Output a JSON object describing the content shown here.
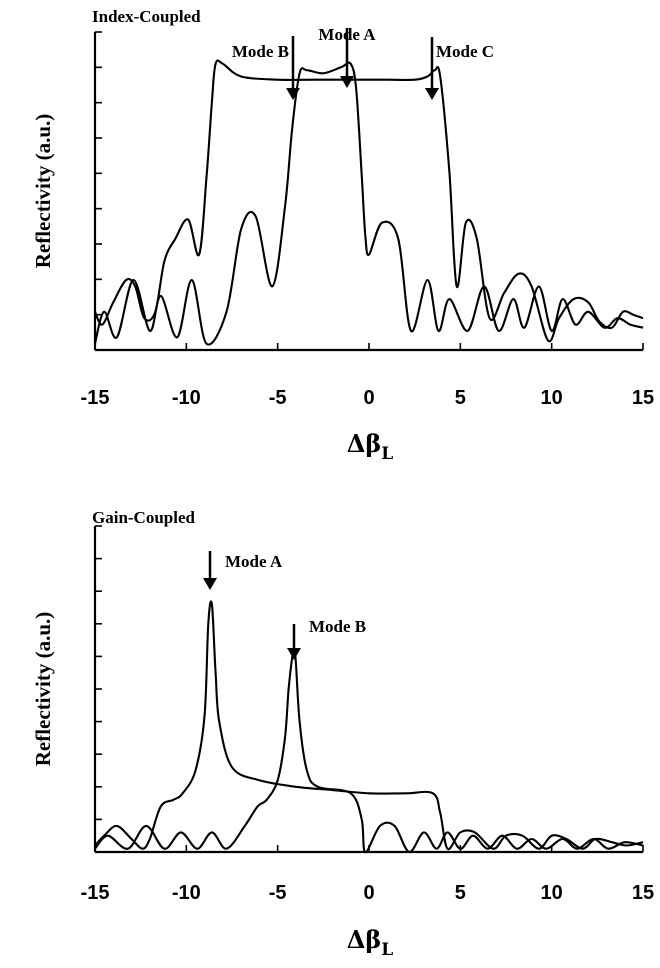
{
  "chart_data": [
    {
      "type": "line",
      "title": "Index-Coupled",
      "xlabel": "Δβ",
      "xlabel_sub": "L",
      "ylabel": "Reflectivity (a.u.)",
      "xlim": [
        -15,
        15
      ],
      "xticks": [
        "-15",
        "-10",
        "-5",
        "0",
        "5",
        "10",
        "15"
      ],
      "ylim": [
        0,
        1
      ],
      "grid": false,
      "annotations": [
        {
          "text": "Mode B",
          "x": -3.6
        },
        {
          "text": "Mode A",
          "x": -0.8
        },
        {
          "text": "Mode C",
          "x": 3.6
        }
      ],
      "series": [
        {
          "x": [
            -15,
            -14.6,
            -14,
            -13.3,
            -12.8,
            -12.3,
            -11.7,
            -11.2,
            -10.6,
            -9.9,
            -9.3,
            -8.9,
            -8.6,
            -8.4,
            -8,
            -7,
            -5,
            -3,
            -1,
            0,
            1,
            2.5,
            3.2,
            3.6,
            3.9,
            4.4,
            4.8,
            5.3,
            5.9,
            6.6,
            7.4,
            8.2,
            8.9,
            9.8,
            10.4,
            11.2,
            12,
            12.6,
            13.3,
            13.9,
            14.5,
            15
          ],
          "values": [
            0.12,
            0.08,
            0.15,
            0.22,
            0.2,
            0.1,
            0.12,
            0.28,
            0.35,
            0.41,
            0.3,
            0.54,
            0.78,
            0.9,
            0.9,
            0.86,
            0.85,
            0.85,
            0.85,
            0.85,
            0.85,
            0.85,
            0.86,
            0.88,
            0.86,
            0.56,
            0.2,
            0.4,
            0.35,
            0.1,
            0.18,
            0.24,
            0.2,
            0.03,
            0.1,
            0.16,
            0.15,
            0.09,
            0.07,
            0.12,
            0.11,
            0.1
          ]
        },
        {
          "x": [
            -15,
            -14.5,
            -13.8,
            -12.9,
            -12,
            -11.4,
            -10.5,
            -9.7,
            -8.9,
            -7.8,
            -7,
            -6.2,
            -5.3,
            -4.6,
            -4.2,
            -3.8,
            -3.4,
            -2.5,
            -1.5,
            -1,
            -0.7,
            -0.4,
            -0.2,
            0,
            0.7,
            1.6,
            2.3,
            3.2,
            3.8,
            4.4,
            5.4,
            6.3,
            7.1,
            7.9,
            8.5,
            9.3,
            10,
            10.6,
            11.3,
            12,
            12.9,
            13.6,
            14.3,
            15
          ],
          "values": [
            0.02,
            0.12,
            0.04,
            0.22,
            0.06,
            0.17,
            0.04,
            0.22,
            0.02,
            0.12,
            0.38,
            0.42,
            0.2,
            0.45,
            0.7,
            0.87,
            0.88,
            0.87,
            0.89,
            0.9,
            0.82,
            0.55,
            0.36,
            0.3,
            0.4,
            0.35,
            0.06,
            0.22,
            0.06,
            0.16,
            0.06,
            0.2,
            0.06,
            0.16,
            0.07,
            0.2,
            0.06,
            0.16,
            0.08,
            0.12,
            0.07,
            0.1,
            0.08,
            0.07
          ]
        }
      ]
    },
    {
      "type": "line",
      "title": "Gain-Coupled",
      "xlabel": "Δβ",
      "xlabel_sub": "L",
      "ylabel": "Reflectivity (a.u.)",
      "xlim": [
        -15,
        15
      ],
      "xticks": [
        "-15",
        "-10",
        "-5",
        "0",
        "5",
        "10",
        "15"
      ],
      "ylim": [
        0,
        1
      ],
      "grid": false,
      "annotations": [
        {
          "text": "Mode A",
          "x": -8.6
        },
        {
          "text": "Mode B",
          "x": -4.1
        }
      ],
      "series": [
        {
          "x": [
            -15,
            -14.5,
            -13.8,
            -13,
            -12.4,
            -12,
            -11.4,
            -10.7,
            -10.2,
            -9.5,
            -9,
            -8.8,
            -8.6,
            -8.4,
            -8.2,
            -7.5,
            -6,
            -4,
            -2,
            0,
            2,
            3.5,
            3.9,
            4.3,
            5,
            5.8,
            6.8,
            7.5,
            8.4,
            9.3,
            10,
            10.8,
            11.7,
            12.4,
            13.3,
            14.1,
            15
          ],
          "values": [
            0.02,
            0.05,
            0.08,
            0.04,
            0.01,
            0.04,
            0.14,
            0.16,
            0.18,
            0.25,
            0.42,
            0.7,
            0.76,
            0.55,
            0.4,
            0.26,
            0.22,
            0.2,
            0.19,
            0.18,
            0.18,
            0.18,
            0.12,
            0.01,
            0.06,
            0.06,
            0.01,
            0.05,
            0.05,
            0.01,
            0.05,
            0.04,
            0.01,
            0.04,
            0.03,
            0.02,
            0.03
          ]
        },
        {
          "x": [
            -15,
            -14.3,
            -13.2,
            -12.2,
            -11.2,
            -10.3,
            -9.4,
            -8.6,
            -7.8,
            -6.8,
            -6.1,
            -5.6,
            -5,
            -4.6,
            -4.4,
            -4.2,
            -4.1,
            -4,
            -3.8,
            -3.4,
            -2.8,
            -1,
            -0.4,
            -0.2,
            0.6,
            1.4,
            2.2,
            3,
            3.7,
            4.3,
            5,
            5.7,
            6.5,
            7.3,
            8.1,
            8.9,
            9.7,
            10.6,
            11.4,
            12.3,
            13.1,
            14,
            15
          ],
          "values": [
            0.01,
            0.05,
            0.01,
            0.08,
            0.01,
            0.06,
            0.01,
            0.06,
            0.01,
            0.08,
            0.14,
            0.16,
            0.22,
            0.35,
            0.5,
            0.6,
            0.62,
            0.58,
            0.4,
            0.25,
            0.2,
            0.18,
            0.1,
            0.0,
            0.08,
            0.08,
            0.0,
            0.06,
            0.01,
            0.06,
            0.01,
            0.05,
            0.01,
            0.05,
            0.01,
            0.04,
            0.01,
            0.04,
            0.01,
            0.04,
            0.01,
            0.03,
            0.02
          ]
        }
      ]
    }
  ]
}
